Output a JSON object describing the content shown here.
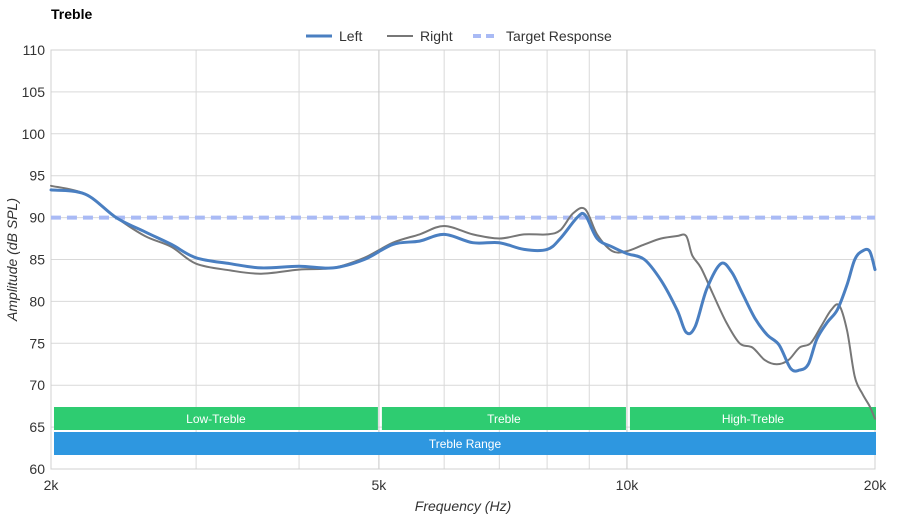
{
  "chart_data": {
    "type": "line",
    "title": "Treble",
    "xlabel": "Frequency (Hz)",
    "ylabel": "Amplitude (dB SPL)",
    "x_scale": "log",
    "xlim": [
      2000,
      20000
    ],
    "ylim": [
      60,
      110
    ],
    "x_ticks": [
      {
        "value": 2000,
        "label": "2k"
      },
      {
        "value": 5000,
        "label": "5k"
      },
      {
        "value": 10000,
        "label": "10k"
      },
      {
        "value": 20000,
        "label": "20k"
      }
    ],
    "x_minor_gridlines": [
      3000,
      4000,
      6000,
      7000,
      8000,
      9000
    ],
    "y_ticks": [
      60,
      65,
      70,
      75,
      80,
      85,
      90,
      95,
      100,
      105,
      110
    ],
    "grid": true,
    "legend_position": "top-center",
    "series": [
      {
        "name": "Left",
        "color": "#4a7fc1",
        "style": "solid-thick",
        "x": [
          2000,
          2200,
          2400,
          2600,
          2800,
          3000,
          3300,
          3600,
          4000,
          4400,
          4800,
          5200,
          5600,
          6000,
          6500,
          7000,
          7500,
          8000,
          8300,
          8700,
          8900,
          9200,
          9600,
          10000,
          10500,
          11000,
          11500,
          11800,
          12100,
          12500,
          13000,
          13400,
          13800,
          14300,
          14800,
          15300,
          15800,
          16200,
          16600,
          17000,
          17500,
          18000,
          18500,
          18900,
          19300,
          19700,
          20000
        ],
        "y": [
          93.3,
          92.8,
          90.0,
          88.3,
          86.8,
          85.2,
          84.5,
          84.0,
          84.2,
          84.0,
          85.0,
          86.8,
          87.2,
          88.0,
          87.0,
          87.0,
          86.2,
          86.2,
          87.5,
          90.0,
          90.3,
          87.5,
          86.5,
          85.7,
          85.0,
          82.5,
          79.0,
          76.3,
          77.0,
          81.5,
          84.5,
          83.5,
          81.0,
          78.0,
          76.0,
          74.8,
          72.0,
          71.8,
          72.5,
          75.5,
          77.5,
          79.0,
          82.0,
          85.0,
          86.0,
          86.0,
          83.8
        ]
      },
      {
        "name": "Right",
        "color": "#777777",
        "style": "solid",
        "x": [
          2000,
          2200,
          2400,
          2600,
          2800,
          3000,
          3300,
          3600,
          4000,
          4400,
          4800,
          5200,
          5600,
          6000,
          6500,
          7000,
          7500,
          8000,
          8300,
          8600,
          8900,
          9200,
          9600,
          10000,
          10500,
          11000,
          11500,
          11800,
          12000,
          12300,
          12700,
          13200,
          13700,
          14200,
          14700,
          15200,
          15700,
          16200,
          16700,
          17200,
          17700,
          18100,
          18500,
          18900,
          19300,
          19700,
          20000
        ],
        "y": [
          93.8,
          92.8,
          90.0,
          87.8,
          86.5,
          84.5,
          83.7,
          83.3,
          83.8,
          84.0,
          85.2,
          87.0,
          88.0,
          89.0,
          88.0,
          87.5,
          88.0,
          88.0,
          88.5,
          90.5,
          91.0,
          88.0,
          86.0,
          86.0,
          86.8,
          87.5,
          87.8,
          87.8,
          85.5,
          84.0,
          81.0,
          77.5,
          75.0,
          74.5,
          73.0,
          72.5,
          73.0,
          74.5,
          75.0,
          77.0,
          79.0,
          79.5,
          76.5,
          71.0,
          69.0,
          67.5,
          66.0
        ]
      },
      {
        "name": "Target Response",
        "color": "#a9baf5",
        "style": "dashed",
        "x": [
          2000,
          20000
        ],
        "y": [
          90,
          90
        ]
      }
    ],
    "bands": [
      {
        "label": "Low-Treble",
        "x0": 2000,
        "x1": 5000,
        "row": 0,
        "color": "#2ecc71"
      },
      {
        "label": "Treble",
        "x0": 5000,
        "x1": 10000,
        "row": 0,
        "color": "#2ecc71"
      },
      {
        "label": "High-Treble",
        "x0": 10000,
        "x1": 20000,
        "row": 0,
        "color": "#2ecc71"
      },
      {
        "label": "Treble Range",
        "x0": 2000,
        "x1": 20000,
        "row": 1,
        "color": "#2e97e0"
      }
    ]
  }
}
